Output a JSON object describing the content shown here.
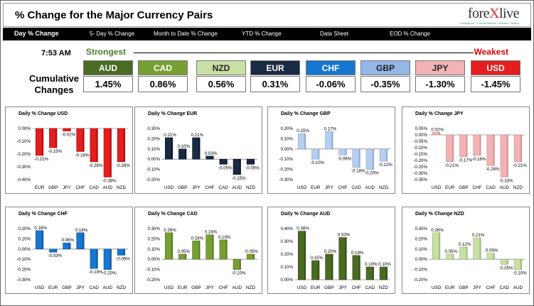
{
  "header": {
    "title": "% Change for the Major Currency Pairs",
    "logo_main_1": "fore",
    "logo_main_x": "X",
    "logo_main_2": "live",
    "logo_tagline": "Transparent • Conversational • Wisdom Trading"
  },
  "nav": [
    {
      "label": "Day % Change",
      "active": true
    },
    {
      "label": "5- Day % Change",
      "active": false
    },
    {
      "label": "Month to Date % Change",
      "active": false
    },
    {
      "label": "YTD % Change",
      "active": false
    },
    {
      "label": "Data Sheet",
      "active": false
    },
    {
      "label": "EOD % Change",
      "active": false
    }
  ],
  "time": "7:53 AM",
  "strongest_label": "Strongest",
  "weakest_label": "Weakest",
  "cumulative_label_1": "Cumulative",
  "cumulative_label_2": "Changes",
  "tiles": [
    {
      "currency": "AUD",
      "value": "1.45%",
      "color": "#4a6b22"
    },
    {
      "currency": "CAD",
      "value": "0.86%",
      "color": "#77a032"
    },
    {
      "currency": "NZD",
      "value": "0.56%",
      "color": "#c9e0a4"
    },
    {
      "currency": "EUR",
      "value": "0.31%",
      "color": "#1a2a44"
    },
    {
      "currency": "CHF",
      "value": "-0.06%",
      "color": "#1776d0"
    },
    {
      "currency": "GBP",
      "value": "-0.35%",
      "color": "#93b7e6"
    },
    {
      "currency": "JPY",
      "value": "-1.30%",
      "color": "#f2b3b5"
    },
    {
      "currency": "USD",
      "value": "-1.45%",
      "color": "#e41e1e"
    }
  ],
  "chart_data": [
    {
      "type": "bar",
      "title": "Daily % Change USD",
      "categories": [
        "EUR",
        "GBP",
        "JPY",
        "CHF",
        "CAD",
        "AUD",
        "NZD"
      ],
      "values": [
        -0.21,
        -0.15,
        -0.02,
        -0.18,
        -0.26,
        -0.38,
        -0.26
      ],
      "labels": [
        "-0.21%",
        "-0.15%",
        "-0.02%",
        "-0.18%",
        "-0.26%",
        "-0.38%",
        "-0.26%"
      ],
      "ylim": [
        -0.4,
        0.0
      ],
      "yticks": [
        0.0,
        -0.1,
        -0.2,
        -0.3,
        -0.4
      ],
      "yticklabels": [
        "0.00%",
        "-0.10%",
        "-0.20%",
        "-0.30%",
        "-0.40%"
      ],
      "color": "#e41e1e",
      "dark": "#a00"
    },
    {
      "type": "bar",
      "title": "Daily % Change EUR",
      "categories": [
        "USD",
        "GBP",
        "JPY",
        "CHF",
        "CAD",
        "AUD",
        "NZD"
      ],
      "values": [
        0.21,
        0.1,
        0.21,
        0.03,
        -0.05,
        -0.15,
        -0.05
      ],
      "labels": [
        "0.21%",
        "0.10%",
        "0.21%",
        "0.03%",
        "-0.05%",
        "-0.15%",
        "-0.05%"
      ],
      "ylim": [
        -0.2,
        0.3
      ],
      "yticks": [
        0.3,
        0.2,
        0.1,
        0.0,
        -0.1,
        -0.2
      ],
      "yticklabels": [
        "0.30%",
        "0.20%",
        "0.10%",
        "0.00%",
        "-0.10%",
        "-0.20%"
      ],
      "color": "#1a2a44",
      "dark": "#0a1220"
    },
    {
      "type": "bar",
      "title": "Daily % Change GBP",
      "categories": [
        "USD",
        "EUR",
        "JPY",
        "CHF",
        "CAD",
        "AUD",
        "NZD"
      ],
      "values": [
        0.15,
        -0.1,
        0.17,
        -0.06,
        -0.18,
        -0.2,
        -0.12
      ],
      "labels": [
        "0.15%",
        "-0.10%",
        "0.17%",
        "-0.06%",
        "-0.18%",
        "-0.20%",
        "-0.12%"
      ],
      "ylim": [
        -0.3,
        0.2
      ],
      "yticks": [
        0.2,
        0.1,
        0.0,
        -0.1,
        -0.2,
        -0.3
      ],
      "yticklabels": [
        "0.20%",
        "0.10%",
        "0.00%",
        "-0.10%",
        "-0.20%",
        "-0.30%"
      ],
      "color": "#b7cfee",
      "dark": "#7f9fcc"
    },
    {
      "type": "bar",
      "title": "Daily % Change JPY",
      "categories": [
        "USD",
        "EUR",
        "GBP",
        "CHF",
        "CAD",
        "AUD",
        "NZD"
      ],
      "values": [
        0.02,
        -0.21,
        -0.17,
        -0.16,
        -0.24,
        -0.33,
        -0.21
      ],
      "labels": [
        "0.02%",
        "-0.21%",
        "-0.17%",
        "-0.16%",
        "-0.24%",
        "-0.33%",
        "-0.21%"
      ],
      "ylim": [
        -0.35,
        0.05
      ],
      "yticks": [
        0.05,
        0.0,
        -0.05,
        -0.1,
        -0.15,
        -0.2,
        -0.25,
        -0.3,
        -0.35
      ],
      "yticklabels": [
        "0.05%",
        "0.00%",
        "-0.05%",
        "-0.10%",
        "-0.15%",
        "-0.20%",
        "-0.25%",
        "-0.30%",
        "-0.35%"
      ],
      "color": "#f2b3b5",
      "dark": "#c88a8c"
    },
    {
      "type": "bar",
      "title": "Daily % Change CHF",
      "categories": [
        "USD",
        "EUR",
        "GBP",
        "JPY",
        "CAD",
        "AUD",
        "NZD"
      ],
      "values": [
        0.18,
        -0.03,
        0.06,
        0.16,
        -0.19,
        -0.2,
        -0.06
      ],
      "labels": [
        "0.18%",
        "-0.03%",
        "0.06%",
        "0.16%",
        "-0.19%",
        "-0.20%",
        "-0.06%"
      ],
      "ylim": [
        -0.3,
        0.2
      ],
      "yticks": [
        0.2,
        0.1,
        0.0,
        -0.1,
        -0.2,
        -0.3
      ],
      "yticklabels": [
        "0.20%",
        "0.10%",
        "0.00%",
        "-0.10%",
        "-0.20%",
        "-0.30%"
      ],
      "color": "#1776d0",
      "dark": "#0c4e90"
    },
    {
      "type": "bar",
      "title": "Daily % Change CAD",
      "categories": [
        "USD",
        "EUR",
        "GBP",
        "JPY",
        "CHF",
        "AUD",
        "NZD"
      ],
      "values": [
        0.26,
        0.05,
        0.18,
        0.24,
        0.19,
        -0.1,
        0.05
      ],
      "labels": [
        "0.26%",
        "0.05%",
        "0.18%",
        "0.24%",
        "0.19%",
        "-0.10%",
        "0.05%"
      ],
      "ylim": [
        -0.2,
        0.3
      ],
      "yticks": [
        0.3,
        0.2,
        0.1,
        0.0,
        -0.1,
        -0.2
      ],
      "yticklabels": [
        "0.30%",
        "0.20%",
        "0.10%",
        "0.00%",
        "-0.10%",
        "-0.20%"
      ],
      "color": "#77a032",
      "dark": "#4f6e1e"
    },
    {
      "type": "bar",
      "title": "Daily % Change AUD",
      "categories": [
        "USD",
        "EUR",
        "GBP",
        "JPY",
        "CHF",
        "CAD",
        "NZD"
      ],
      "values": [
        0.38,
        0.15,
        0.2,
        0.33,
        0.19,
        0.1,
        0.1
      ],
      "labels": [
        "0.38%",
        "0.15%",
        "0.20%",
        "0.33%",
        "0.19%",
        "0.10%",
        "0.10%"
      ],
      "ylim": [
        0.0,
        0.4
      ],
      "yticks": [
        0.4,
        0.3,
        0.2,
        0.1,
        0.0
      ],
      "yticklabels": [
        "0.40%",
        "0.30%",
        "0.20%",
        "0.10%",
        "0.00%"
      ],
      "color": "#4a6b22",
      "dark": "#2e4512"
    },
    {
      "type": "bar",
      "title": "Daily % Change NZD",
      "categories": [
        "USD",
        "EUR",
        "GBP",
        "JPY",
        "CHF",
        "CAD",
        "AUD"
      ],
      "values": [
        0.26,
        0.05,
        0.12,
        0.21,
        0.06,
        -0.05,
        -0.1
      ],
      "labels": [
        "0.26%",
        "0.05%",
        "0.12%",
        "0.21%",
        "0.06%",
        "-0.05%",
        "-0.10%"
      ],
      "ylim": [
        -0.2,
        0.3
      ],
      "yticks": [
        0.3,
        0.2,
        0.1,
        0.0,
        -0.1,
        -0.2
      ],
      "yticklabels": [
        "0.30%",
        "0.20%",
        "0.10%",
        "0.00%",
        "-0.10%",
        "-0.20%"
      ],
      "color": "#c9e0a4",
      "dark": "#94ad6e"
    }
  ]
}
